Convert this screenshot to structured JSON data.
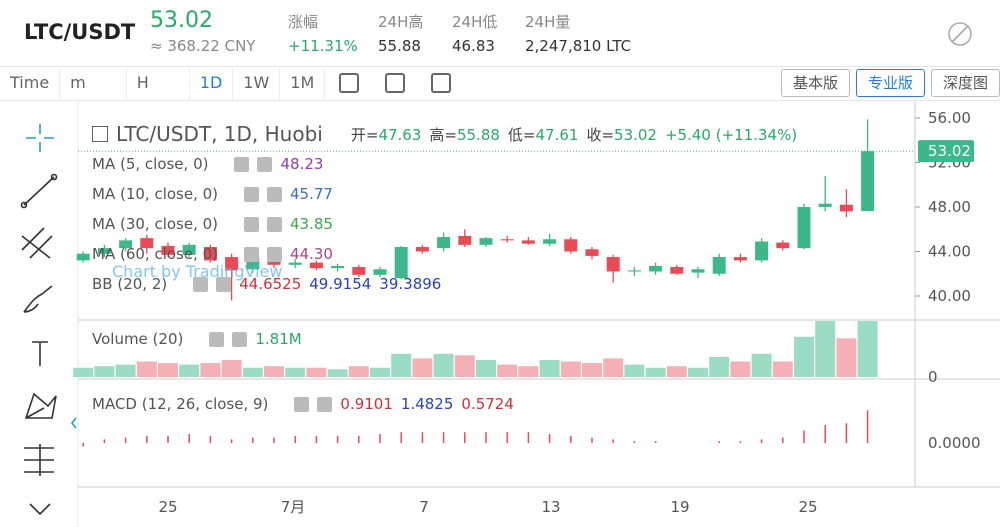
{
  "header": {
    "pair": "LTC/USDT",
    "price": "53.02",
    "cny": "≈ 368.22 CNY",
    "stats": [
      {
        "label": "涨幅",
        "value": "+11.31%"
      },
      {
        "label": "24H高",
        "value": "55.88"
      },
      {
        "label": "24H低",
        "value": "46.83"
      },
      {
        "label": "24H量",
        "value": "2,247,810 LTC"
      }
    ]
  },
  "toolbar": {
    "intervals": [
      "Time",
      "m",
      "H",
      "1D",
      "1W",
      "1M"
    ],
    "active": "1D",
    "views": [
      "基本版",
      "专业版",
      "深度图"
    ],
    "active_view": "专业版"
  },
  "chart": {
    "title": "LTC/USDT, 1D, Huobi",
    "ohlc": [
      {
        "label": "开=",
        "value": "47.63"
      },
      {
        "label": "高=",
        "value": "55.88"
      },
      {
        "label": "低=",
        "value": "47.61"
      },
      {
        "label": "收=",
        "value": "53.02"
      }
    ],
    "change": "+5.40 (+11.34%)",
    "indicators": [
      {
        "name": "MA (5, close, 0)",
        "values": [
          {
            "text": "48.23",
            "color": "#8e3fa6"
          }
        ]
      },
      {
        "name": "MA (10, close, 0)",
        "values": [
          {
            "text": "45.77",
            "color": "#3a6ec8"
          }
        ]
      },
      {
        "name": "MA (30, close, 0)",
        "values": [
          {
            "text": "43.85",
            "color": "#3aa84a"
          }
        ]
      },
      {
        "name": "MA (60, close, 0)",
        "values": [
          {
            "text": "44.30",
            "color": "#a04b8a"
          }
        ]
      },
      {
        "name": "BB (20, 2)",
        "values": [
          {
            "text": "44.6525",
            "color": "#d0303a"
          },
          {
            "text": "49.9154",
            "color": "#2a3fc0"
          },
          {
            "text": "39.3896",
            "color": "#2a3fc0"
          }
        ]
      }
    ],
    "watermark": "Chart by TradingView",
    "price_label": "53.02",
    "ylim": [
      37.84,
      57.62
    ],
    "yticks": [
      {
        "value": 40,
        "label": "40.00"
      },
      {
        "value": 44,
        "label": "44.00"
      },
      {
        "value": 48,
        "label": "48.00"
      },
      {
        "value": 52,
        "label": "52.00"
      },
      {
        "value": 56,
        "label": "56.00"
      }
    ],
    "up_color": "#3cb88a",
    "down_color": "#e84b55",
    "candles": [
      [
        43.2,
        44.0,
        43.0,
        43.8
      ],
      [
        43.8,
        44.6,
        43.5,
        44.3
      ],
      [
        44.3,
        45.2,
        44.0,
        45.0
      ],
      [
        45.2,
        45.5,
        43.8,
        44.3
      ],
      [
        44.5,
        44.8,
        43.5,
        43.7
      ],
      [
        43.7,
        44.8,
        43.5,
        44.6
      ],
      [
        44.4,
        44.6,
        43.0,
        43.2
      ],
      [
        43.5,
        43.8,
        39.6,
        42.3
      ],
      [
        42.4,
        43.6,
        42.1,
        43.4
      ],
      [
        43.3,
        43.5,
        42.5,
        42.8
      ],
      [
        42.8,
        43.3,
        42.5,
        43.0
      ],
      [
        43.0,
        43.2,
        42.3,
        42.5
      ],
      [
        42.5,
        42.9,
        42.2,
        42.7
      ],
      [
        42.6,
        42.8,
        41.7,
        41.9
      ],
      [
        41.9,
        42.6,
        41.7,
        42.4
      ],
      [
        41.6,
        44.5,
        41.5,
        44.4
      ],
      [
        44.4,
        44.6,
        43.8,
        44.0
      ],
      [
        44.3,
        45.7,
        44.0,
        45.3
      ],
      [
        45.4,
        46.0,
        44.4,
        44.6
      ],
      [
        44.6,
        45.3,
        44.4,
        45.2
      ],
      [
        45.1,
        45.4,
        44.8,
        45.0
      ],
      [
        45.0,
        45.3,
        44.6,
        44.7
      ],
      [
        44.7,
        45.6,
        44.5,
        45.1
      ],
      [
        45.1,
        45.3,
        43.8,
        44.0
      ],
      [
        44.2,
        44.4,
        43.3,
        43.6
      ],
      [
        43.5,
        43.7,
        41.2,
        42.2
      ],
      [
        42.2,
        42.6,
        41.8,
        42.3
      ],
      [
        42.2,
        43.0,
        41.9,
        42.7
      ],
      [
        42.6,
        42.8,
        41.9,
        42.0
      ],
      [
        42.1,
        42.6,
        41.6,
        42.4
      ],
      [
        42.0,
        43.8,
        41.8,
        43.5
      ],
      [
        43.5,
        43.8,
        43.0,
        43.2
      ],
      [
        43.2,
        45.2,
        43.0,
        44.9
      ],
      [
        44.8,
        45.0,
        44.1,
        44.3
      ],
      [
        44.3,
        48.3,
        44.2,
        48.0
      ],
      [
        48.0,
        50.8,
        47.6,
        48.3
      ],
      [
        48.2,
        49.6,
        47.1,
        47.6
      ],
      [
        47.63,
        55.88,
        47.61,
        53.02
      ]
    ],
    "volume": {
      "name": "Volume (20)",
      "value": "1.81M",
      "ytick": "0",
      "values": [
        0.3,
        0.35,
        0.4,
        0.5,
        0.45,
        0.4,
        0.45,
        0.55,
        0.3,
        0.35,
        0.3,
        0.3,
        0.25,
        0.35,
        0.3,
        0.75,
        0.6,
        0.75,
        0.7,
        0.55,
        0.4,
        0.35,
        0.55,
        0.5,
        0.45,
        0.6,
        0.4,
        0.3,
        0.35,
        0.3,
        0.65,
        0.5,
        0.75,
        0.5,
        1.3,
        1.81,
        1.25,
        1.81
      ]
    },
    "macd": {
      "name": "MACD (12, 26, close, 9)",
      "values": [
        {
          "text": "0.9101",
          "color": "#d0303a"
        },
        {
          "text": "1.4825",
          "color": "#2a3fc0"
        },
        {
          "text": "0.5724",
          "color": "#d0303a"
        }
      ],
      "ytick": "0.0000",
      "histogram": [
        -0.1,
        0.1,
        0.15,
        0.2,
        0.2,
        0.25,
        0.2,
        0.1,
        0.15,
        0.15,
        0.2,
        0.2,
        0.2,
        0.2,
        0.25,
        0.3,
        0.3,
        0.3,
        0.3,
        0.3,
        0.3,
        0.3,
        0.25,
        0.2,
        0.15,
        0.1,
        0.05,
        0.05,
        0.0,
        0.0,
        0.05,
        0.05,
        0.1,
        0.15,
        0.35,
        0.5,
        0.55,
        0.9101
      ]
    },
    "xticks": [
      "25",
      "7月",
      "7",
      "13",
      "19",
      "25"
    ]
  }
}
